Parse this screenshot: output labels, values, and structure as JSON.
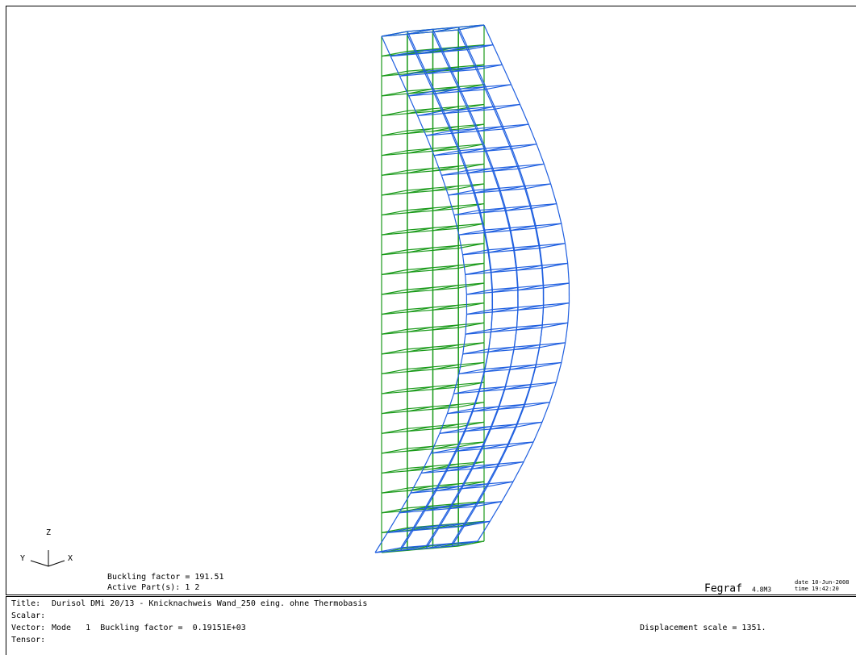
{
  "viewport": {
    "axes": {
      "z": "Z",
      "y": "Y",
      "x": "X"
    },
    "buckling_factor": "Buckling factor = 191.51",
    "active_parts": "Active Part(s):   1   2",
    "brand": "Fegraf",
    "version": "4.8M3",
    "date": "date 10-Jun-2008",
    "time": "time 19:42:20"
  },
  "info": {
    "title_label": "Title:",
    "title": "Durisol DMi 20/13 - Knicknachweis Wand_250 eing. ohne Thermobasis",
    "scalar_label": "Scalar:",
    "vector_label": "Vector:",
    "vector": "Mode   1  Buckling factor =  0.19151E+03",
    "displacement_scale": "Displacement scale = 1351.",
    "tensor_label": "Tensor:"
  }
}
